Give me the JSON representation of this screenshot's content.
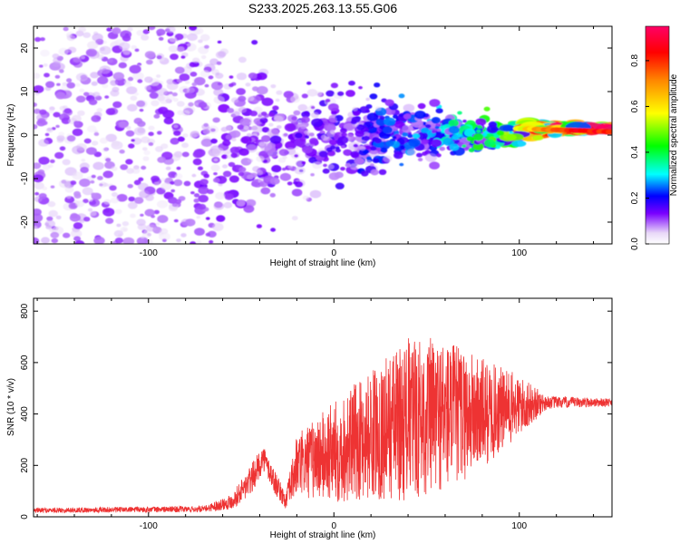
{
  "figure": {
    "title": "S233.2025.263.13.55.G06"
  },
  "chart_data": [
    {
      "type": "heatmap",
      "xlabel": "Height of straight line (km)",
      "ylabel": "Frequency (Hz)",
      "xlim": [
        -162,
        150
      ],
      "ylim": [
        -25,
        25
      ],
      "xticks": [
        -100,
        0,
        100
      ],
      "yticks": [
        -20,
        -10,
        0,
        10,
        20
      ],
      "colorbar": {
        "label": "Normalized spectral amplitude",
        "range": [
          0,
          0.95
        ],
        "ticks": [
          0,
          0.2,
          0.4,
          0.6,
          0.8
        ],
        "colormap": [
          "#ffffff",
          "#e8d8f8",
          "#7a00ff",
          "#0000ff",
          "#00ffff",
          "#00ff00",
          "#ffff00",
          "#ff8800",
          "#ff0000",
          "#ff0066"
        ]
      },
      "description_points": [
        {
          "height": -140,
          "freq_spread": 25,
          "amplitude": 0.1
        },
        {
          "height": -60,
          "freq_spread": 20,
          "amplitude": 0.12
        },
        {
          "height": 0,
          "freq_spread": 10,
          "amplitude": 0.15
        },
        {
          "height": 60,
          "freq_spread": 5,
          "amplitude": 0.3
        },
        {
          "height": 90,
          "freq_spread": 3,
          "amplitude": 0.45
        },
        {
          "height": 120,
          "freq_spread": 1,
          "amplitude": 0.9
        },
        {
          "height": 145,
          "freq_spread": 0.5,
          "amplitude": 0.95
        }
      ]
    },
    {
      "type": "line",
      "xlabel": "Height of straight line (km)",
      "ylabel": "SNR (10 * v/v)",
      "xlim": [
        -162,
        150
      ],
      "ylim": [
        0,
        850
      ],
      "xticks": [
        -100,
        0,
        100
      ],
      "yticks": [
        0,
        200,
        400,
        600,
        800
      ],
      "color": "#ee3333",
      "envelope": [
        {
          "x": -162,
          "base": 25,
          "spread": 10
        },
        {
          "x": -70,
          "base": 30,
          "spread": 12
        },
        {
          "x": -55,
          "base": 60,
          "spread": 30
        },
        {
          "x": -45,
          "base": 140,
          "spread": 60
        },
        {
          "x": -38,
          "base": 230,
          "spread": 50
        },
        {
          "x": -33,
          "base": 150,
          "spread": 50
        },
        {
          "x": -26,
          "base": 60,
          "spread": 30
        },
        {
          "x": -20,
          "base": 200,
          "spread": 120
        },
        {
          "x": 0,
          "base": 250,
          "spread": 200
        },
        {
          "x": 20,
          "base": 320,
          "spread": 250
        },
        {
          "x": 40,
          "base": 380,
          "spread": 320
        },
        {
          "x": 60,
          "base": 400,
          "spread": 300
        },
        {
          "x": 80,
          "base": 400,
          "spread": 220
        },
        {
          "x": 100,
          "base": 430,
          "spread": 120
        },
        {
          "x": 115,
          "base": 445,
          "spread": 25
        },
        {
          "x": 150,
          "base": 445,
          "spread": 15
        }
      ]
    }
  ]
}
